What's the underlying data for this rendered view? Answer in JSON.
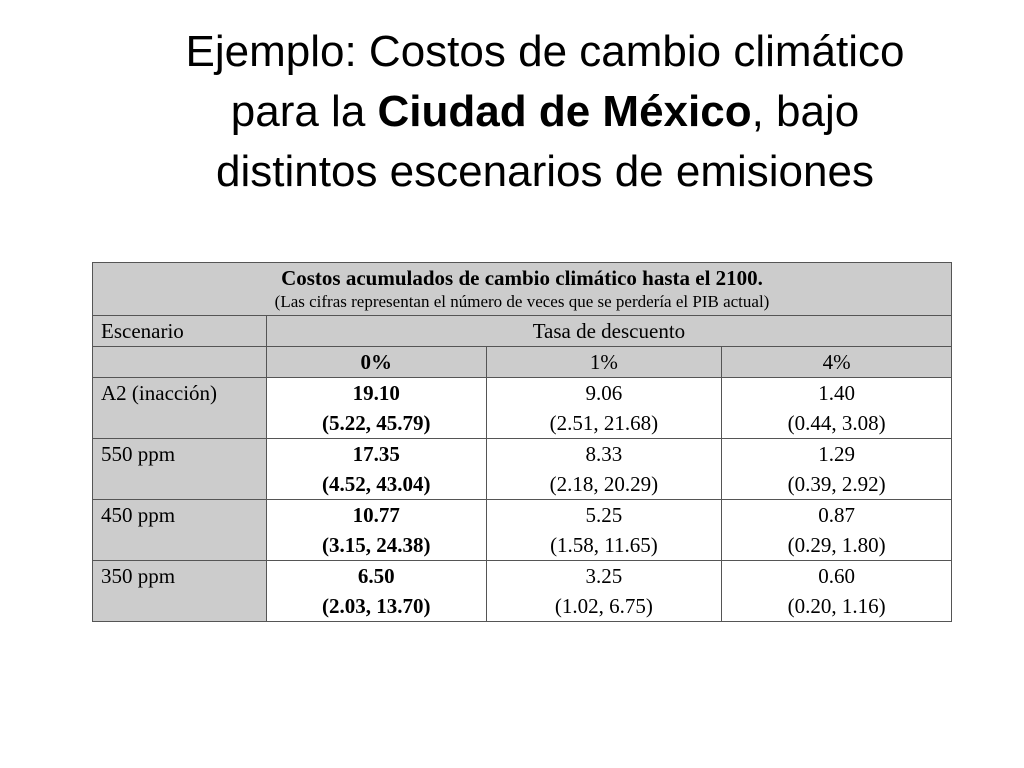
{
  "title": {
    "line1": "Ejemplo: Costos de cambio climático",
    "line2_pre": "para la ",
    "line2_bold": "Ciudad de México",
    "line2_post": ", bajo",
    "line3": "distintos escenarios de emisiones"
  },
  "table": {
    "caption_main": "Costos acumulados de cambio climático hasta el 2100.",
    "caption_sub": "(Las cifras representan el número de veces que se perdería el PIB actual)",
    "col_scenario": "Escenario",
    "col_rate": "Tasa de descuento",
    "rates": [
      "0%",
      "1%",
      "4%"
    ],
    "rows": [
      {
        "scenario": "A2 (inacción)",
        "r0": {
          "value": "19.10",
          "range": "(5.22, 45.79)"
        },
        "r1": {
          "value": "9.06",
          "range": "(2.51, 21.68)"
        },
        "r4": {
          "value": "1.40",
          "range": "(0.44, 3.08)"
        }
      },
      {
        "scenario": "550 ppm",
        "r0": {
          "value": "17.35",
          "range": "(4.52, 43.04)"
        },
        "r1": {
          "value": "8.33",
          "range": "(2.18, 20.29)"
        },
        "r4": {
          "value": "1.29",
          "range": "(0.39, 2.92)"
        }
      },
      {
        "scenario": "450 ppm",
        "r0": {
          "value": "10.77",
          "range": "(3.15, 24.38)"
        },
        "r1": {
          "value": "5.25",
          "range": "(1.58, 11.65)"
        },
        "r4": {
          "value": "0.87",
          "range": "(0.29, 1.80)"
        }
      },
      {
        "scenario": "350 ppm",
        "r0": {
          "value": "6.50",
          "range": "(2.03, 13.70)"
        },
        "r1": {
          "value": "3.25",
          "range": "(1.02, 6.75)"
        },
        "r4": {
          "value": "0.60",
          "range": "(0.20, 1.16)"
        }
      }
    ]
  },
  "colors": {
    "header_shade": "#cccccc",
    "cell_white": "#ffffff",
    "border": "#555555"
  }
}
